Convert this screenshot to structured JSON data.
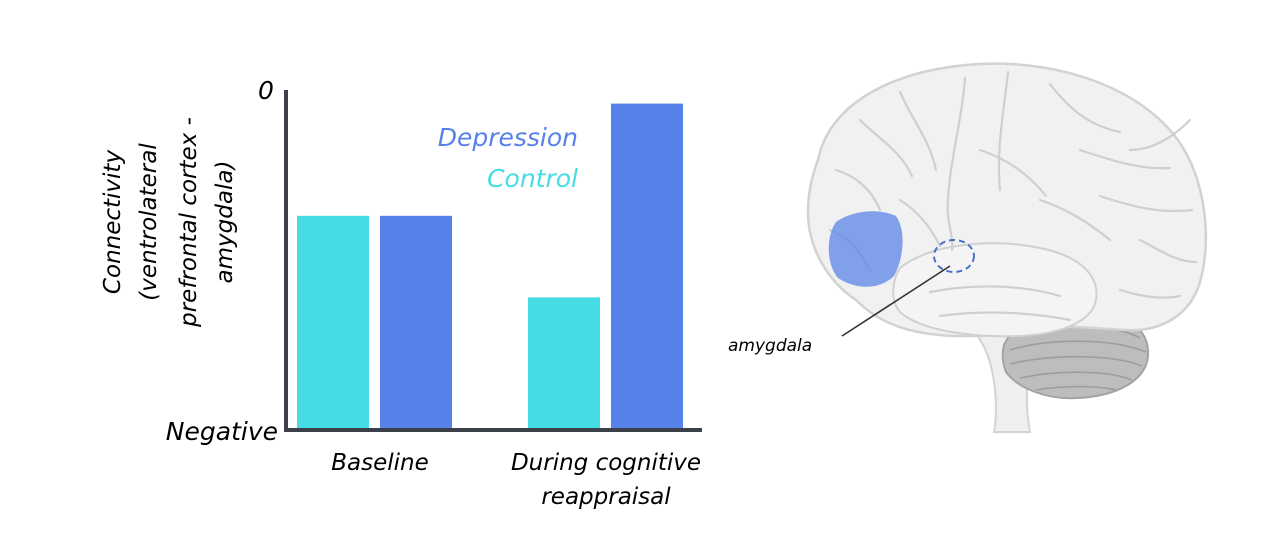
{
  "chart_data": {
    "type": "bar",
    "title": "",
    "xlabel": "",
    "ylabel_lines": [
      "Connectivity",
      "(ventrolateral",
      "prefrontal cortex -",
      "amygdala)"
    ],
    "y_tick_labels": {
      "top": "0",
      "bottom": "Negative"
    },
    "ylim": [
      0,
      100
    ],
    "categories": [
      {
        "lines": [
          "Baseline"
        ]
      },
      {
        "lines": [
          "During cognitive",
          "reappraisal"
        ]
      }
    ],
    "series": [
      {
        "name": "Control",
        "color": "#45DCE3",
        "values": [
          63,
          39
        ]
      },
      {
        "name": "Depression",
        "color": "#5681E8",
        "values": [
          63,
          96
        ]
      }
    ],
    "legend_order": [
      "Depression",
      "Control"
    ],
    "legend_placement": "top-center",
    "grid": false
  },
  "illustration": {
    "annotation_label": "amygdala",
    "highlight_color": "#5681E8",
    "icon": "brain-sagittal-icon"
  }
}
